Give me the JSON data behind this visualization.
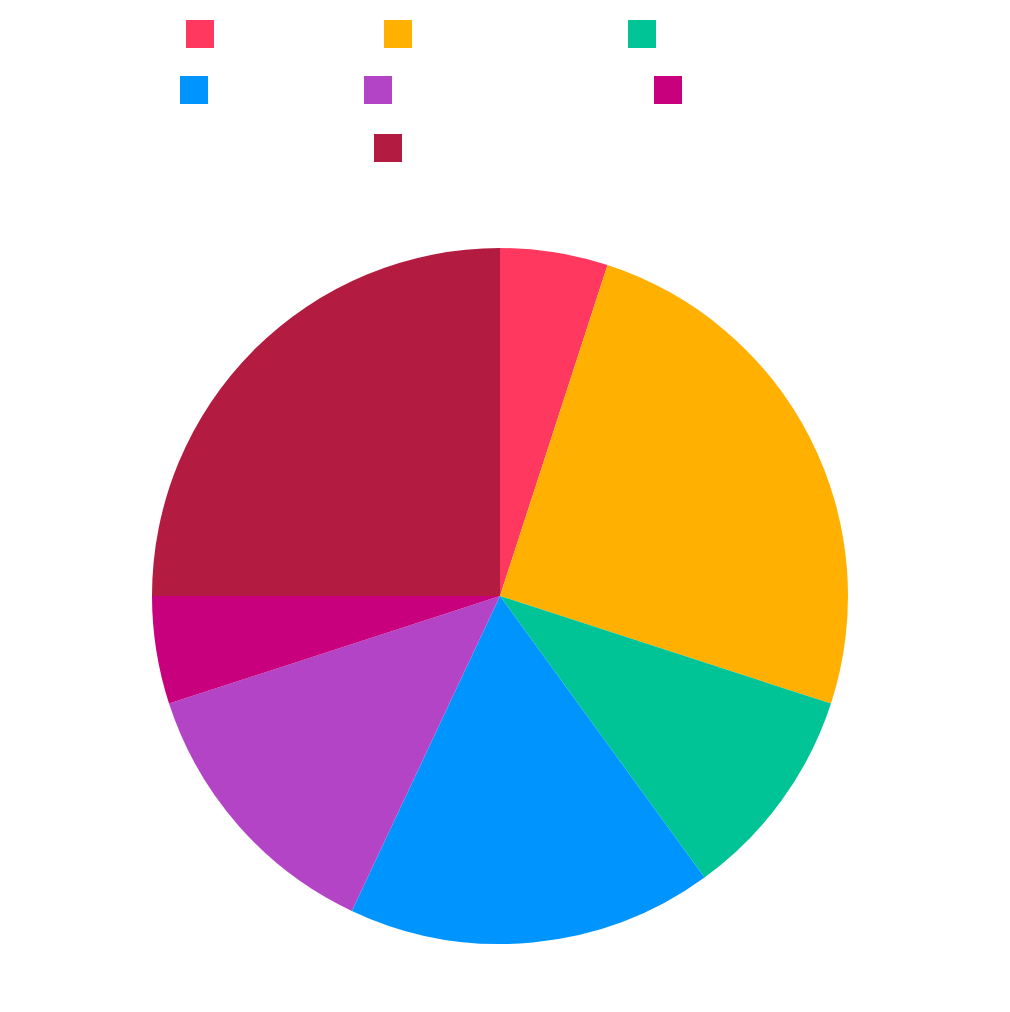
{
  "chart_data": {
    "type": "pie",
    "categories": [
      null,
      null,
      null,
      null,
      null,
      null,
      null
    ],
    "values": [
      5,
      25,
      10,
      17,
      13,
      5,
      25
    ],
    "colors": [
      "#ff3860",
      "#ffb000",
      "#00c495",
      "#0094ff",
      "#b344c6",
      "#c8007e",
      "#b31b40"
    ]
  }
}
